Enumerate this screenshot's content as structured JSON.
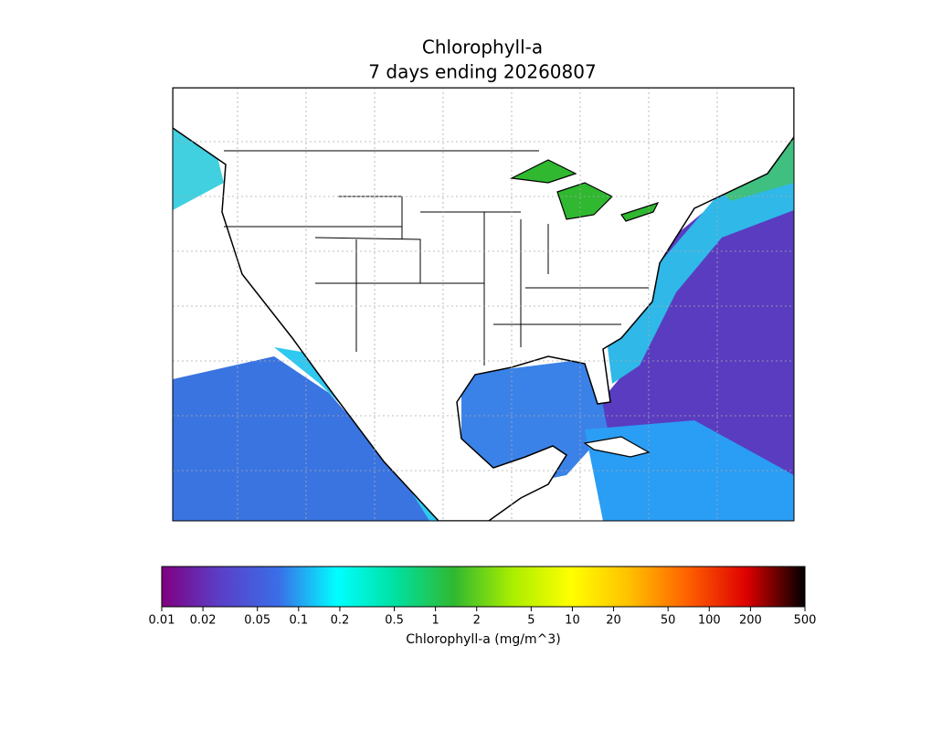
{
  "map": {
    "title": "Chlorophyll-a",
    "subtitle": "7 days ending 20260807",
    "colorbar": {
      "label": "Chlorophyll-a (mg/m^3)",
      "scale": "log",
      "lim": [
        0.01,
        500
      ],
      "ticks": [
        0.01,
        0.02,
        0.05,
        0.1,
        0.2,
        0.5,
        1,
        2,
        5,
        10,
        20,
        50,
        100,
        200,
        500
      ],
      "colormap": [
        "#800080",
        "#5a3fc8",
        "#3a6ee8",
        "#00ffff",
        "#00e0a0",
        "#30b830",
        "#aaee00",
        "#ffff00",
        "#ffc000",
        "#ff6000",
        "#dd0000",
        "#000000"
      ]
    }
  }
}
